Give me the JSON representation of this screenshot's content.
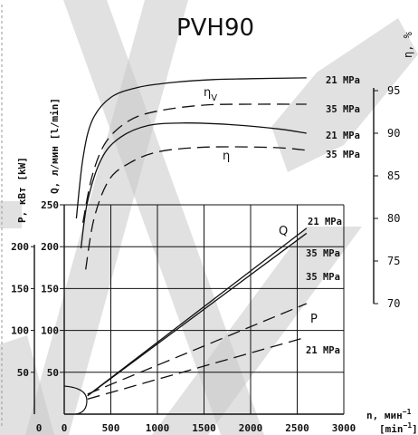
{
  "chart_data": {
    "type": "line",
    "title": "PVH90",
    "x": {
      "label_line1": "n, мин",
      "label_sup1": "−1",
      "label_line2": "[min",
      "label_sup2": "−1",
      "label_close": "]",
      "ticks": [
        0,
        500,
        1000,
        1500,
        2000,
        2500,
        3000
      ],
      "range": [
        0,
        3000
      ]
    },
    "y_flow": {
      "label": "Q, л/мин [l/min]",
      "ticks": [
        50,
        100,
        150,
        200,
        250
      ],
      "range": [
        0,
        250
      ]
    },
    "y_power": {
      "label": "P, кВт [kW]",
      "ticks": [
        0,
        50,
        100,
        150,
        200
      ],
      "range": [
        0,
        250
      ]
    },
    "y_efficiency": {
      "label": "η, %",
      "ticks": [
        70,
        75,
        80,
        85,
        90,
        95
      ],
      "range": [
        70,
        97
      ]
    },
    "curve_labels": {
      "eta_v": "η",
      "eta_v_sub": "V",
      "eta": "η",
      "flow": "Q",
      "power": "P"
    },
    "series": [
      {
        "group": "eta_v",
        "pressure": "21 MPa",
        "dash": false,
        "x": [
          130,
          200,
          300,
          500,
          800,
          1200,
          1600,
          2000,
          2600
        ],
        "y": [
          80.0,
          87.0,
          91.5,
          94.2,
          95.4,
          96.0,
          96.3,
          96.4,
          96.5
        ]
      },
      {
        "group": "eta_v",
        "pressure": "35 MPa",
        "dash": true,
        "x": [
          200,
          300,
          450,
          700,
          1000,
          1500,
          2000,
          2600
        ],
        "y": [
          79.5,
          85.0,
          89.0,
          91.5,
          92.6,
          93.3,
          93.4,
          93.4
        ]
      },
      {
        "group": "eta",
        "pressure": "21 MPa",
        "dash": false,
        "x": [
          180,
          250,
          400,
          600,
          900,
          1300,
          1800,
          2300,
          2600
        ],
        "y": [
          76.5,
          82.0,
          87.0,
          89.5,
          90.9,
          91.2,
          91.0,
          90.5,
          90.0
        ]
      },
      {
        "group": "eta",
        "pressure": "35 MPa",
        "dash": true,
        "x": [
          230,
          320,
          480,
          700,
          1000,
          1400,
          1800,
          2300,
          2600
        ],
        "y": [
          74.0,
          80.0,
          84.5,
          86.5,
          87.8,
          88.3,
          88.4,
          88.3,
          88.0
        ]
      },
      {
        "group": "flow",
        "pressure": "21 MPa",
        "dash": false,
        "x": [
          250,
          2600
        ],
        "y": [
          22,
          222
        ]
      },
      {
        "group": "flow",
        "pressure": "35 MPa",
        "dash": false,
        "x": [
          250,
          2600
        ],
        "y": [
          22,
          216
        ]
      },
      {
        "group": "power",
        "pressure": "35 MPa",
        "dash": true,
        "x": [
          250,
          2600
        ],
        "y": [
          24,
          132
        ]
      },
      {
        "group": "power",
        "pressure": "21 MPa",
        "dash": true,
        "x": [
          250,
          2600
        ],
        "y": [
          18,
          92
        ]
      }
    ],
    "pressure_labels": [
      {
        "text": "21 MPa",
        "series": 0
      },
      {
        "text": "35 MPa",
        "series": 1
      },
      {
        "text": "21 MPa",
        "series": 2
      },
      {
        "text": "35 MPa",
        "series": 3
      },
      {
        "text": "21 MPa",
        "series": 4
      },
      {
        "text": "35 MPa",
        "series": 5
      },
      {
        "text": "35 MPa",
        "series": 6
      },
      {
        "text": "21 MPa",
        "series": 7
      }
    ],
    "grid": true
  },
  "colors": {
    "ink": "#111111",
    "watermark": "#c8c8c8"
  }
}
